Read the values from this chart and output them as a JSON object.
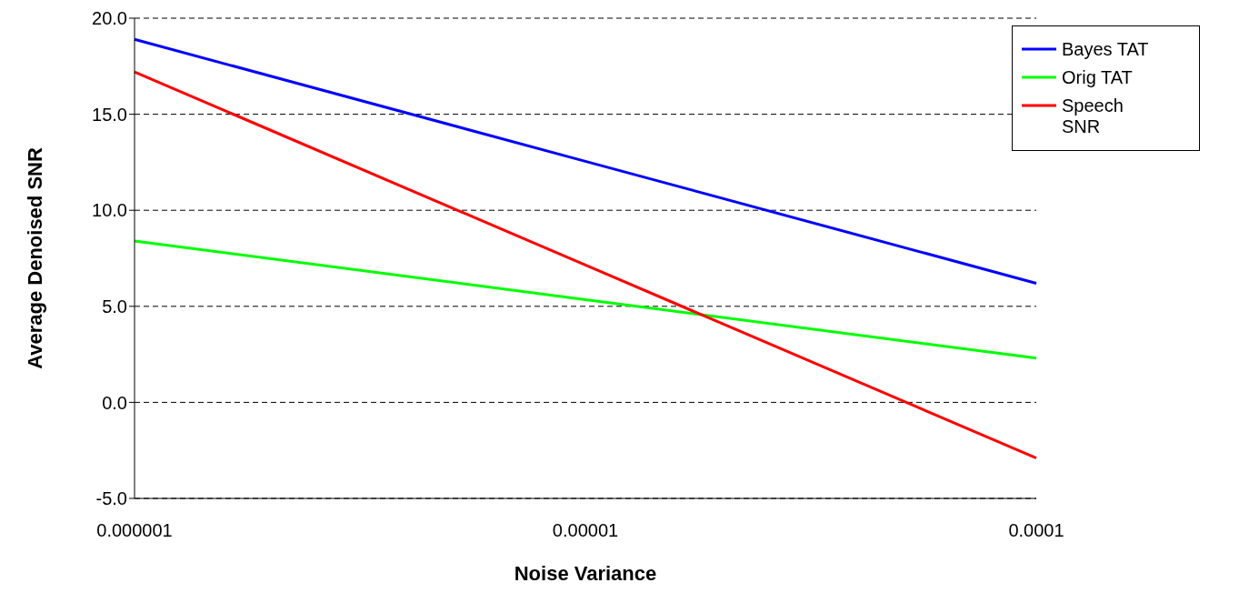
{
  "chart_data": {
    "type": "line",
    "xlabel": "Noise Variance",
    "ylabel": "Average Denoised SNR",
    "categories": [
      "0.000001",
      "0.00001",
      "0.0001"
    ],
    "series": [
      {
        "name": "Orig TAT",
        "color": "#00ff00",
        "values": [
          8.4,
          5.35,
          2.3
        ]
      },
      {
        "name": "Bayes TAT",
        "color": "#0000ff",
        "values": [
          18.9,
          12.55,
          6.2
        ]
      },
      {
        "name": "Speech SNR",
        "color": "#ff0000",
        "values": [
          17.2,
          7.15,
          -2.9
        ]
      }
    ],
    "ylim": [
      -5,
      20
    ],
    "yticks": [
      {
        "value": -5,
        "label": "-5.0"
      },
      {
        "value": 0,
        "label": "0.0"
      },
      {
        "value": 5,
        "label": "5.0"
      },
      {
        "value": 10,
        "label": "10.0"
      },
      {
        "value": 15,
        "label": "15.0"
      },
      {
        "value": 20,
        "label": "20.0"
      }
    ],
    "grid": "y",
    "legend": "top right",
    "marker": "none",
    "line_style": "solid"
  }
}
